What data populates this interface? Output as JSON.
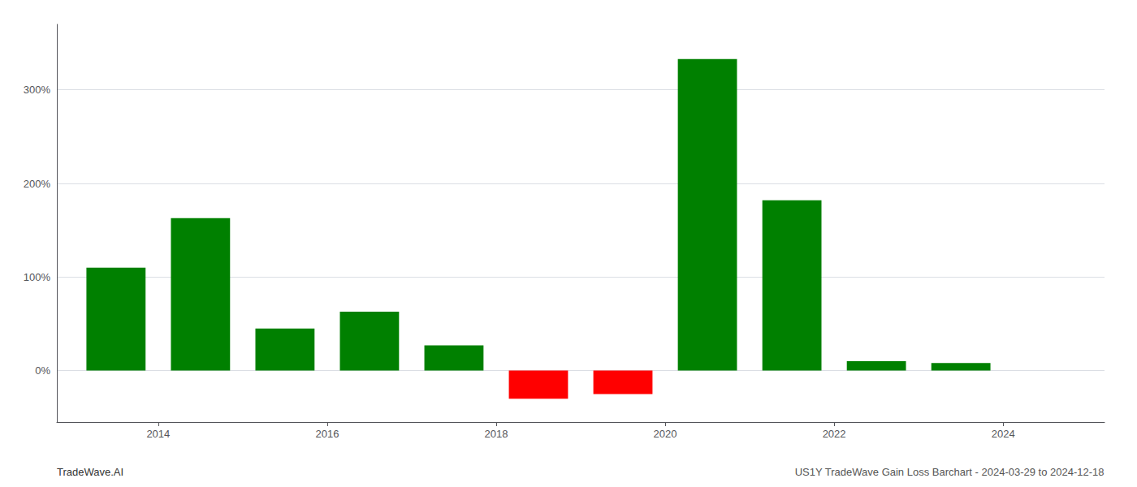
{
  "chart_data": {
    "type": "bar",
    "x": [
      2013.5,
      2014.5,
      2015.5,
      2016.5,
      2017.5,
      2018.5,
      2019.5,
      2020.5,
      2021.5,
      2022.5,
      2023.5
    ],
    "values": [
      110,
      163,
      45,
      63,
      27,
      -30,
      -25,
      333,
      182,
      10,
      8
    ],
    "colors": [
      "#008000",
      "#008000",
      "#008000",
      "#008000",
      "#008000",
      "#ff0000",
      "#ff0000",
      "#008000",
      "#008000",
      "#008000",
      "#008000"
    ],
    "xlim": [
      2012.8,
      2025.2
    ],
    "xticks": [
      2014,
      2016,
      2018,
      2020,
      2022,
      2024
    ],
    "ylim": [
      -55,
      370
    ],
    "yticks": [
      {
        "value": 0,
        "label": "0%"
      },
      {
        "value": 100,
        "label": "100%"
      },
      {
        "value": 200,
        "label": "200%"
      },
      {
        "value": 300,
        "label": "300%"
      }
    ],
    "grid": true,
    "annotations": [
      "TradeWave.AI",
      "US1Y TradeWave Gain Loss Barchart - 2024-03-29 to 2024-12-18"
    ]
  }
}
